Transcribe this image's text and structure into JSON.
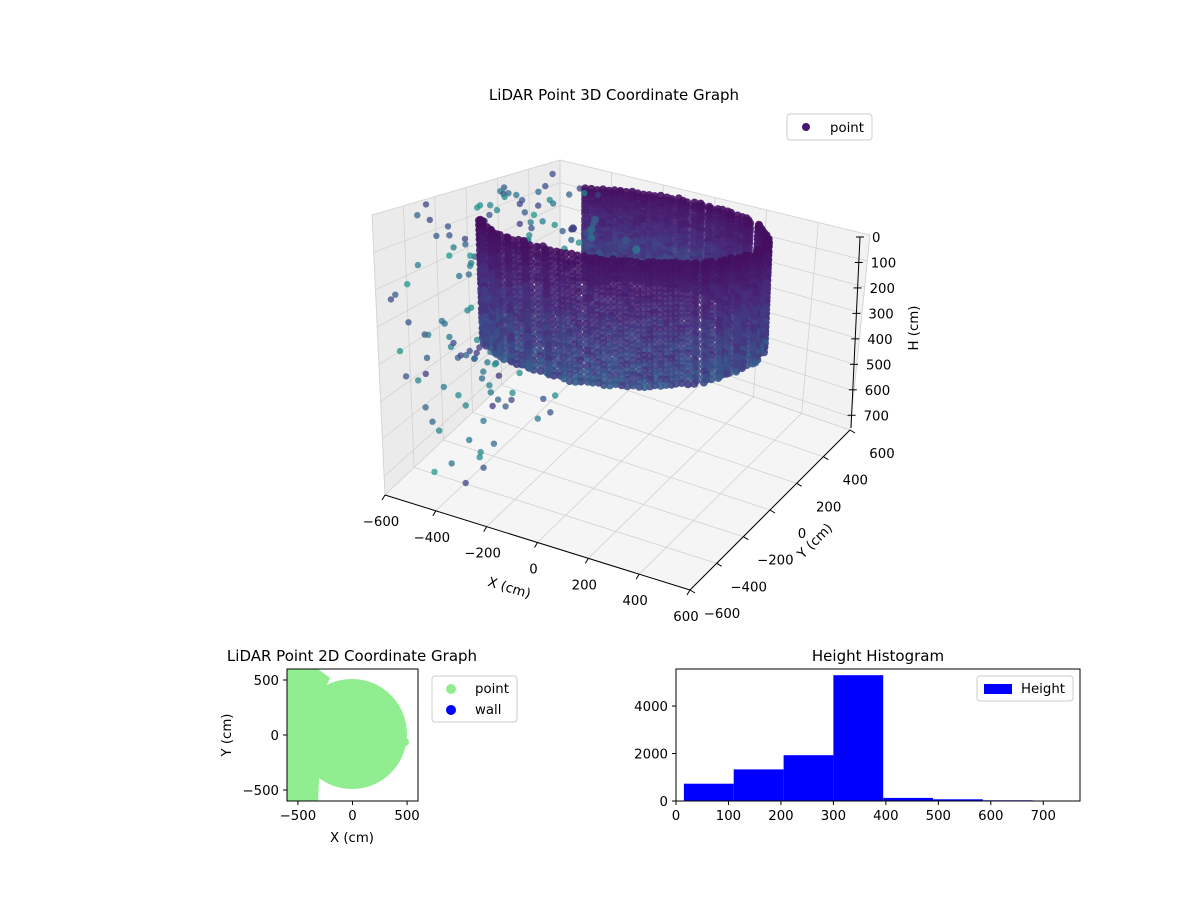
{
  "chart_data": [
    {
      "type": "scatter",
      "title": "LiDAR Point 3D Coordinate Graph",
      "xlabel": "X (cm)",
      "ylabel": "Y (cm)",
      "zlabel": "H (cm)",
      "xlim": [
        -600,
        600
      ],
      "ylim": [
        -600,
        600
      ],
      "zlim": [
        0,
        750
      ],
      "z_inverted": true,
      "x_ticks": [
        "−600",
        "−400",
        "−200",
        "0",
        "200",
        "400",
        "600"
      ],
      "y_ticks": [
        "−600",
        "−400",
        "−200",
        "0",
        "200",
        "400",
        "600"
      ],
      "z_ticks": [
        "0",
        "100",
        "200",
        "300",
        "400",
        "500",
        "600",
        "700"
      ],
      "legend": [
        {
          "label": "point",
          "color": "#46166e"
        }
      ],
      "legend_position": "top-right",
      "colormap": "viridis",
      "series": [
        {
          "name": "point",
          "description": "ring of points near radius 500 cm at heights 0-350 cm (wall + ceiling edge), sparse points for x < -300 cm",
          "ring_radius": 500,
          "height_range": [
            0,
            350
          ]
        }
      ],
      "grid": true
    },
    {
      "type": "scatter",
      "title": "LiDAR Point 2D Coordinate Graph",
      "xlabel": "X (cm)",
      "ylabel": "Y (cm)",
      "xlim": [
        -600,
        600
      ],
      "ylim": [
        -600,
        600
      ],
      "x_ticks": [
        "−500",
        "0",
        "500"
      ],
      "y_ticks": [
        "500",
        "0",
        "−500"
      ],
      "legend": [
        {
          "label": "point",
          "color": "#90ee90"
        },
        {
          "label": "wall",
          "color": "#0000ff"
        }
      ],
      "legend_position": "outside-right",
      "series": [
        {
          "name": "point",
          "color": "#90ee90",
          "description": "filled disk, radius ~500 cm, plus region x < -300"
        },
        {
          "name": "wall",
          "color": "#0000ff",
          "values": []
        }
      ]
    },
    {
      "type": "bar",
      "title": "Height Histogram",
      "xlabel": "",
      "ylabel": "",
      "xlim": [
        0,
        770
      ],
      "ylim": [
        0,
        5560
      ],
      "x_ticks": [
        "0",
        "100",
        "200",
        "300",
        "400",
        "500",
        "600",
        "700"
      ],
      "y_ticks": [
        "0",
        "2000",
        "4000"
      ],
      "legend": [
        {
          "label": "Height",
          "color": "#0000ff"
        }
      ],
      "legend_position": "upper right",
      "series": [
        {
          "name": "Height",
          "bin_edges": [
            15,
            110,
            205,
            300,
            395,
            490,
            585,
            680,
            775
          ],
          "values": [
            730,
            1330,
            1930,
            5300,
            130,
            70,
            30,
            20
          ]
        }
      ]
    }
  ]
}
